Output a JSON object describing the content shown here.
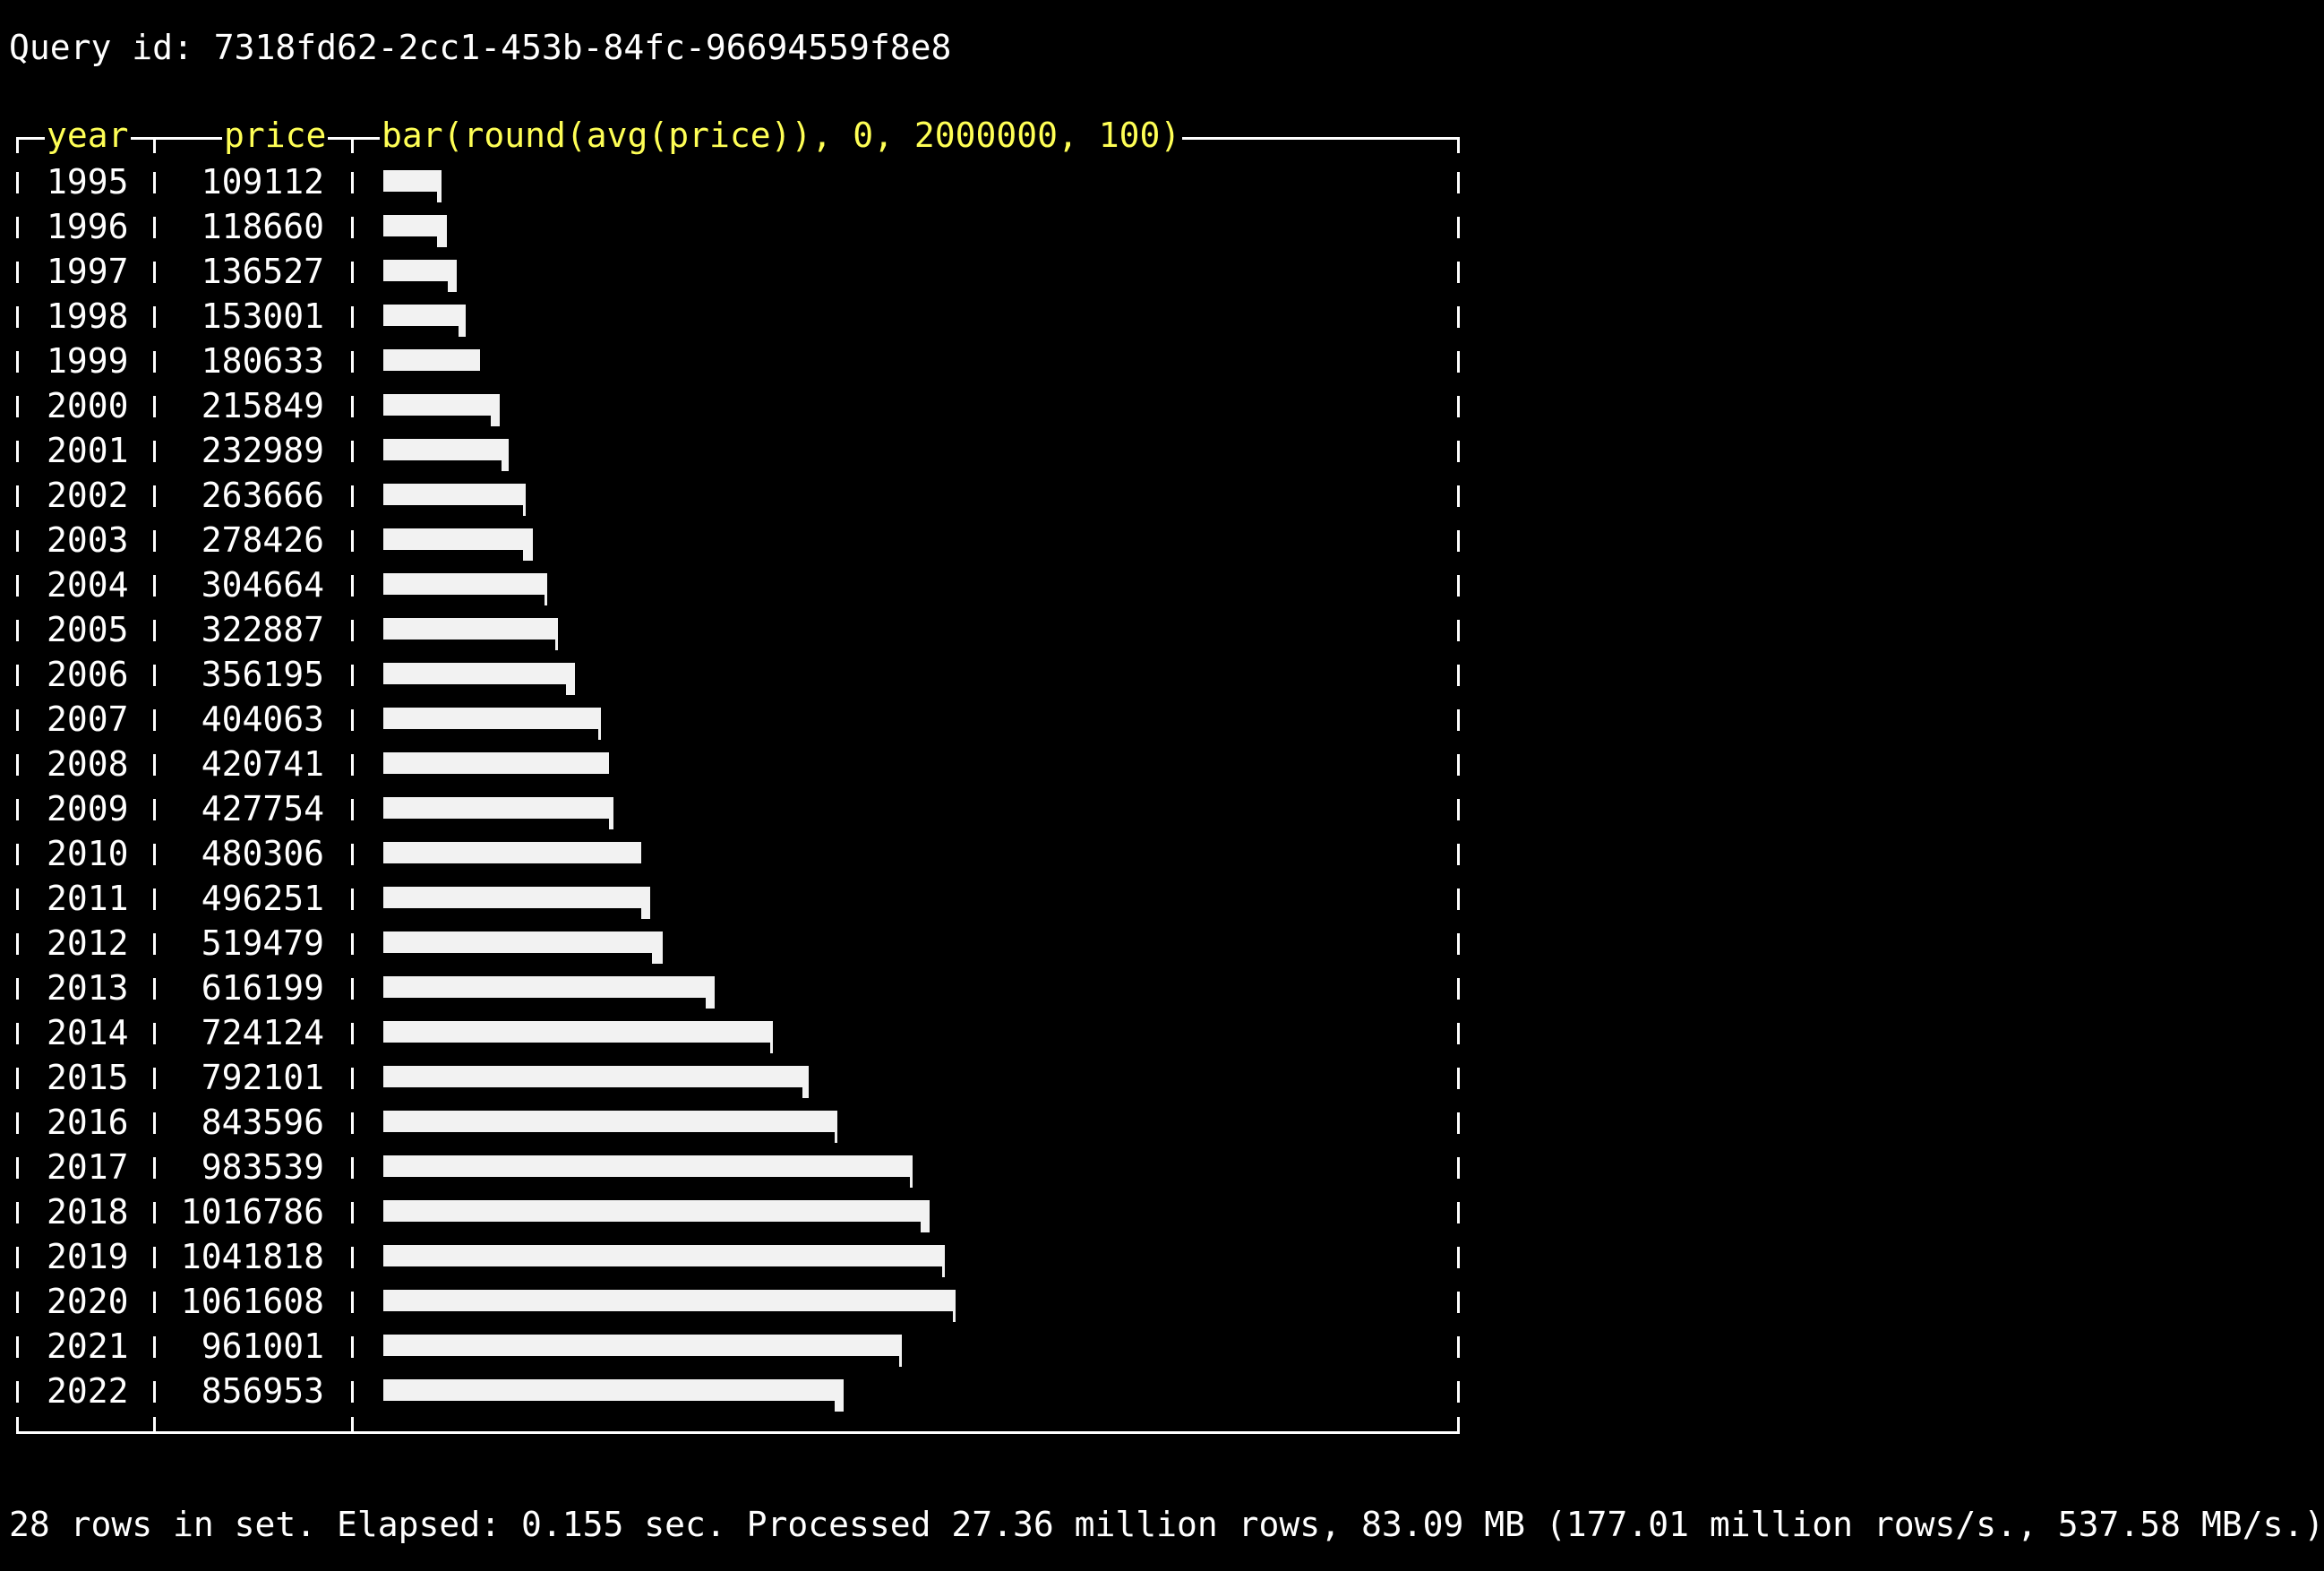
{
  "query_line": "Query id: 7318fd62-2cc1-453b-84fc-96694559f8e8",
  "table": {
    "columns": [
      "year",
      "price",
      "bar(round(avg(price)), 0, 2000000, 100)"
    ],
    "bar_min": 0,
    "bar_max": 2000000,
    "bar_width_chars": 100,
    "rows": [
      {
        "year": "1995",
        "price": "109112"
      },
      {
        "year": "1996",
        "price": "118660"
      },
      {
        "year": "1997",
        "price": "136527"
      },
      {
        "year": "1998",
        "price": "153001"
      },
      {
        "year": "1999",
        "price": "180633"
      },
      {
        "year": "2000",
        "price": "215849"
      },
      {
        "year": "2001",
        "price": "232989"
      },
      {
        "year": "2002",
        "price": "263666"
      },
      {
        "year": "2003",
        "price": "278426"
      },
      {
        "year": "2004",
        "price": "304664"
      },
      {
        "year": "2005",
        "price": "322887"
      },
      {
        "year": "2006",
        "price": "356195"
      },
      {
        "year": "2007",
        "price": "404063"
      },
      {
        "year": "2008",
        "price": "420741"
      },
      {
        "year": "2009",
        "price": "427754"
      },
      {
        "year": "2010",
        "price": "480306"
      },
      {
        "year": "2011",
        "price": "496251"
      },
      {
        "year": "2012",
        "price": "519479"
      },
      {
        "year": "2013",
        "price": "616199"
      },
      {
        "year": "2014",
        "price": "724124"
      },
      {
        "year": "2015",
        "price": "792101"
      },
      {
        "year": "2016",
        "price": "843596"
      },
      {
        "year": "2017",
        "price": "983539"
      },
      {
        "year": "2018",
        "price": "1016786"
      },
      {
        "year": "2019",
        "price": "1041818"
      },
      {
        "year": "2020",
        "price": "1061608"
      },
      {
        "year": "2021",
        "price": "961001"
      },
      {
        "year": "2022",
        "price": "856953"
      }
    ]
  },
  "footer_line": "28 rows in set. Elapsed: 0.155 sec. Processed 27.36 million rows, 83.09 MB (177.01 million rows/s., 537.58 MB/s.)",
  "colors": {
    "background": "#000000",
    "text": "#ffffff",
    "header": "#ffff55",
    "bar": "#f2f2f2"
  }
}
